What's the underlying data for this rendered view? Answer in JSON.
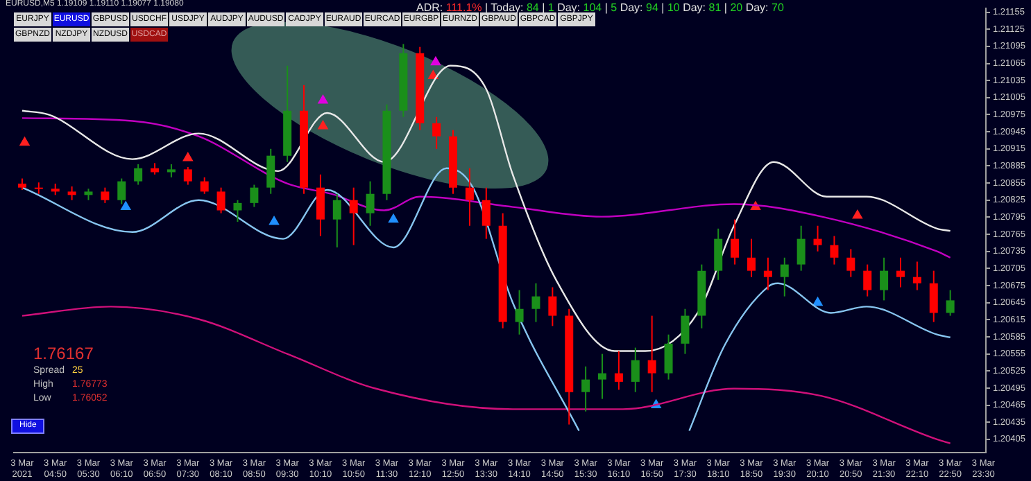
{
  "chart_data": {
    "type": "candlestick",
    "title": "EURUSD,M5  1.19109 1.19110 1.19077 1.19080",
    "annotations": [
      "ADR: 111.1%  |  Today: 84  |  1 Day: 104  |  5 Day: 94  |  10 Day: 81  |  20 Day: 70",
      "EURJPY",
      "EURUSD",
      "GBPUSD",
      "USDCHF",
      "USDJPY",
      "AUDJPY",
      "AUDUSD",
      "CADJPY",
      "EURAUD",
      "EURCAD",
      "EURGBP",
      "EURNZD",
      "GBPAUD",
      "GBPCAD",
      "GBPJPY",
      "GBPNZD",
      "NZDJPY",
      "NZDUSD",
      "USDCAD",
      "Hide",
      "1.76167",
      "Spread",
      "25",
      "High",
      "1.76773",
      "Low",
      "1.76052"
    ],
    "x": [
      "2021-03-03T04:10",
      "2021-03-03T04:30",
      "2021-03-03T04:50",
      "2021-03-03T05:10",
      "2021-03-03T05:30",
      "2021-03-03T05:50",
      "2021-03-03T06:10",
      "2021-03-03T06:30",
      "2021-03-03T06:50",
      "2021-03-03T07:10",
      "2021-03-03T07:30",
      "2021-03-03T07:50",
      "2021-03-03T08:10",
      "2021-03-03T08:30",
      "2021-03-03T08:50",
      "2021-03-03T09:10",
      "2021-03-03T09:30",
      "2021-03-03T09:50",
      "2021-03-03T10:10",
      "2021-03-03T10:30",
      "2021-03-03T10:50",
      "2021-03-03T11:10",
      "2021-03-03T11:30",
      "2021-03-03T11:50",
      "2021-03-03T12:10",
      "2021-03-03T12:30",
      "2021-03-03T12:50",
      "2021-03-03T13:10",
      "2021-03-03T13:30",
      "2021-03-03T13:50",
      "2021-03-03T14:10",
      "2021-03-03T14:30",
      "2021-03-03T14:50",
      "2021-03-03T15:10",
      "2021-03-03T15:30",
      "2021-03-03T15:50",
      "2021-03-03T16:10",
      "2021-03-03T16:30",
      "2021-03-03T16:50",
      "2021-03-03T17:10",
      "2021-03-03T17:30",
      "2021-03-03T17:50",
      "2021-03-03T18:10",
      "2021-03-03T18:30",
      "2021-03-03T18:50",
      "2021-03-03T19:10",
      "2021-03-03T19:30",
      "2021-03-03T19:50",
      "2021-03-03T20:10",
      "2021-03-03T20:30",
      "2021-03-03T20:50",
      "2021-03-03T21:10",
      "2021-03-03T21:30",
      "2021-03-03T21:50",
      "2021-03-03T22:10",
      "2021-03-03T22:30",
      "2021-03-03T22:50"
    ],
    "ohlc": [
      [
        1.20854,
        1.20863,
        1.20843,
        1.20847
      ],
      [
        1.20847,
        1.20856,
        1.20836,
        1.20845
      ],
      [
        1.20845,
        1.20854,
        1.20834,
        1.2084
      ],
      [
        1.2084,
        1.20849,
        1.20825,
        1.20834
      ],
      [
        1.20834,
        1.20845,
        1.20825,
        1.2084
      ],
      [
        1.2084,
        1.20847,
        1.2082,
        1.20825
      ],
      [
        1.20825,
        1.20863,
        1.20818,
        1.20858
      ],
      [
        1.20858,
        1.20888,
        1.20852,
        1.20881
      ],
      [
        1.20881,
        1.2089,
        1.2087,
        1.20874
      ],
      [
        1.20874,
        1.20888,
        1.20865,
        1.20879
      ],
      [
        1.20879,
        1.20883,
        1.20852,
        1.20858
      ],
      [
        1.20858,
        1.20865,
        1.20836,
        1.2084
      ],
      [
        1.2084,
        1.20847,
        1.20802,
        1.20807
      ],
      [
        1.20807,
        1.20825,
        1.20787,
        1.2082
      ],
      [
        1.2082,
        1.20852,
        1.20813,
        1.20847
      ],
      [
        1.20847,
        1.20915,
        1.20836,
        1.20903
      ],
      [
        1.20903,
        1.21061,
        1.20892,
        1.20982
      ],
      [
        1.20982,
        1.21027,
        1.20836,
        1.20847
      ],
      [
        1.20847,
        1.2087,
        1.20762,
        1.20791
      ],
      [
        1.20791,
        1.20836,
        1.20742,
        1.20825
      ],
      [
        1.20825,
        1.20847,
        1.20746,
        1.20802
      ],
      [
        1.20802,
        1.20858,
        1.2078,
        1.20836
      ],
      [
        1.20836,
        1.20993,
        1.20825,
        1.20982
      ],
      [
        1.20982,
        1.21099,
        1.20971,
        1.21083
      ],
      [
        1.21083,
        1.21094,
        1.20948,
        1.2096
      ],
      [
        1.2096,
        1.20971,
        1.20915,
        1.20937
      ],
      [
        1.20937,
        1.20948,
        1.20836,
        1.20847
      ],
      [
        1.20847,
        1.20881,
        1.2078,
        1.20825
      ],
      [
        1.20825,
        1.20847,
        1.20757,
        1.2078
      ],
      [
        1.2078,
        1.20802,
        1.206,
        1.20611
      ],
      [
        1.20611,
        1.20667,
        1.20589,
        1.20634
      ],
      [
        1.20634,
        1.20679,
        1.20611,
        1.20656
      ],
      [
        1.20656,
        1.20672,
        1.20604,
        1.20622
      ],
      [
        1.20622,
        1.20634,
        1.20431,
        1.20488
      ],
      [
        1.20488,
        1.20533,
        1.20454,
        1.2051
      ],
      [
        1.2051,
        1.20555,
        1.20476,
        1.20521
      ],
      [
        1.20521,
        1.2056,
        1.20492,
        1.20506
      ],
      [
        1.20506,
        1.20566,
        1.20488,
        1.20544
      ],
      [
        1.20544,
        1.20622,
        1.20488,
        1.20521
      ],
      [
        1.20521,
        1.20589,
        1.2051,
        1.20573
      ],
      [
        1.20573,
        1.20634,
        1.20555,
        1.20622
      ],
      [
        1.20622,
        1.20712,
        1.206,
        1.20701
      ],
      [
        1.20701,
        1.20775,
        1.20685,
        1.20757
      ],
      [
        1.20757,
        1.20791,
        1.20712,
        1.20724
      ],
      [
        1.20724,
        1.20757,
        1.2069,
        1.20701
      ],
      [
        1.20701,
        1.20724,
        1.20667,
        1.2069
      ],
      [
        1.2069,
        1.20724,
        1.20656,
        1.20712
      ],
      [
        1.20712,
        1.2078,
        1.20701,
        1.20757
      ],
      [
        1.20757,
        1.2078,
        1.20735,
        1.20746
      ],
      [
        1.20746,
        1.20762,
        1.20712,
        1.20724
      ],
      [
        1.20724,
        1.20739,
        1.2069,
        1.20701
      ],
      [
        1.20701,
        1.20712,
        1.20656,
        1.20667
      ],
      [
        1.20667,
        1.20724,
        1.20649,
        1.20701
      ],
      [
        1.20701,
        1.20724,
        1.20672,
        1.2069
      ],
      [
        1.2069,
        1.20717,
        1.20667,
        1.20679
      ],
      [
        1.20679,
        1.20701,
        1.20611,
        1.20627
      ],
      [
        1.20627,
        1.20667,
        1.20622,
        1.20649
      ]
    ],
    "colors": [
      "#ff0000",
      "#ff0000",
      "#ff0000",
      "#ff0000",
      "#1a8f1a",
      "#ff0000",
      "#1a8f1a",
      "#1a8f1a",
      "#ff0000",
      "#1a8f1a",
      "#ff0000",
      "#ff0000",
      "#ff0000",
      "#1a8f1a",
      "#1a8f1a",
      "#1a8f1a",
      "#1a8f1a",
      "#ff0000",
      "#ff0000",
      "#1a8f1a",
      "#ff0000",
      "#1a8f1a",
      "#1a8f1a",
      "#1a8f1a",
      "#ff0000",
      "#ff0000",
      "#ff0000",
      "#ff0000",
      "#ff0000",
      "#ff0000",
      "#1a8f1a",
      "#1a8f1a",
      "#ff0000",
      "#ff0000",
      "#1a8f1a",
      "#1a8f1a",
      "#ff0000",
      "#1a8f1a",
      "#ff0000",
      "#1a8f1a",
      "#1a8f1a",
      "#1a8f1a",
      "#1a8f1a",
      "#ff0000",
      "#ff0000",
      "#ff0000",
      "#1a8f1a",
      "#1a8f1a",
      "#ff0000",
      "#ff0000",
      "#ff0000",
      "#ff0000",
      "#1a8f1a",
      "#ff0000",
      "#ff0000",
      "#ff0000",
      "#1a8f1a"
    ],
    "series": [
      {
        "type": "line",
        "color": "#e8e8e8",
        "x": [
          "2021-03-03T04:10",
          "2021-03-03T04:42",
          "2021-03-03T06:23",
          "2021-03-03T07:43",
          "2021-03-03T09:19",
          "2021-03-03T10:18",
          "2021-03-03T11:27",
          "2021-03-03T12:47",
          "2021-03-03T13:30",
          "2021-03-03T14:02",
          "2021-03-03T14:55",
          "2021-03-03T16:05",
          "2021-03-03T16:42",
          "2021-03-03T17:46",
          "2021-03-03T18:29",
          "2021-03-03T19:17",
          "2021-03-03T20:21",
          "2021-03-03T21:09",
          "2021-03-03T22:34",
          "2021-03-03T22:50"
        ],
        "values": [
          1.20982,
          1.20975,
          1.20897,
          1.20942,
          1.20876,
          1.20978,
          1.20892,
          1.21061,
          1.2102,
          1.2087,
          1.20683,
          1.2056,
          1.2056,
          1.20629,
          1.2078,
          1.20892,
          1.20831,
          1.20831,
          1.20775,
          1.20771
        ]
      },
      {
        "type": "line",
        "color": "#87c5f0",
        "x": [
          "2021-03-03T04:10",
          "2021-03-03T06:23",
          "2021-03-03T07:43",
          "2021-03-03T09:25",
          "2021-03-03T10:18",
          "2021-03-03T11:38",
          "2021-03-03T12:42",
          "2021-03-03T13:14",
          "2021-03-03T14:02",
          "2021-03-03T15:22",
          "2021-03-03T16:30",
          "2021-03-03T17:35",
          "2021-03-03T18:18",
          "2021-03-03T19:11",
          "2021-03-03T19:22",
          "2021-03-03T20:26",
          "2021-03-03T21:09",
          "2021-03-03T22:34",
          "2021-03-03T22:50"
        ],
        "values": [
          1.20847,
          1.20769,
          1.20825,
          1.20757,
          1.20843,
          1.20742,
          1.20881,
          1.20847,
          1.20645,
          1.2042,
          null,
          1.2042,
          1.20571,
          1.20674,
          1.20679,
          1.20627,
          1.20638,
          1.20589,
          1.20584
        ]
      },
      {
        "type": "line",
        "color": "#c000c0",
        "x": [
          "2021-03-03T04:10",
          "2021-03-03T06:23",
          "2021-03-03T07:43",
          "2021-03-03T09:30",
          "2021-03-03T10:23",
          "2021-03-03T11:27",
          "2021-03-03T12:10",
          "2021-03-03T14:02",
          "2021-03-03T15:49",
          "2021-03-03T18:29",
          "2021-03-03T20:15",
          "2021-03-03T22:34",
          "2021-03-03T22:50"
        ],
        "values": [
          1.20969,
          1.20964,
          1.20937,
          1.20854,
          1.20836,
          1.20807,
          1.20831,
          1.20813,
          1.20796,
          1.20818,
          1.20796,
          1.20735,
          1.20724
        ]
      },
      {
        "type": "line",
        "color": "#d0107a",
        "x": [
          "2021-03-03T04:10",
          "2021-03-03T05:57",
          "2021-03-03T07:43",
          "2021-03-03T09:30",
          "2021-03-03T11:17",
          "2021-03-03T14:02",
          "2021-03-03T16:15",
          "2021-03-03T18:29",
          "2021-03-03T20:15",
          "2021-03-03T22:34",
          "2021-03-03T22:50"
        ],
        "values": [
          1.20622,
          1.20638,
          1.20616,
          1.20555,
          1.20494,
          1.20458,
          1.20458,
          1.20494,
          1.20481,
          1.20405,
          1.20398
        ]
      },
      {
        "type": "scatter",
        "marker": "triangle",
        "color": "#ff2020",
        "x": [
          "2021-03-03T04:13",
          "2021-03-03T07:30",
          "2021-03-03T10:13",
          "2021-03-03T12:26",
          "2021-03-03T18:55",
          "2021-03-03T20:58"
        ],
        "values": [
          1.20926,
          1.20899,
          1.20955,
          1.21043,
          1.20813,
          1.20798
        ]
      },
      {
        "type": "scatter",
        "marker": "triangle",
        "color": "#2090ff",
        "x": [
          "2021-03-03T06:15",
          "2021-03-03T09:14",
          "2021-03-03T11:38",
          "2021-03-03T16:55",
          "2021-03-03T20:10"
        ],
        "values": [
          1.20813,
          1.20787,
          1.20791,
          1.20465,
          1.20645
        ]
      },
      {
        "type": "scatter",
        "marker": "triangle",
        "color": "#e000e0",
        "x": [
          "2021-03-03T10:13",
          "2021-03-03T12:29"
        ],
        "values": [
          1.21,
          1.21067
        ]
      }
    ],
    "xlim": [
      "2021-03-03T04:00",
      "2021-03-03T23:33"
    ],
    "ylim": [
      1.20382,
      1.21162
    ],
    "xticks": [
      {
        "value": "2021-03-03T04:10",
        "label": "3 Mar 2021"
      },
      {
        "value": "2021-03-03T04:50",
        "label": "3 Mar 04:50"
      },
      {
        "value": "2021-03-03T05:30",
        "label": "3 Mar 05:30"
      },
      {
        "value": "2021-03-03T06:10",
        "label": "3 Mar 06:10"
      },
      {
        "value": "2021-03-03T06:50",
        "label": "3 Mar 06:50"
      },
      {
        "value": "2021-03-03T07:30",
        "label": "3 Mar 07:30"
      },
      {
        "value": "2021-03-03T08:10",
        "label": "3 Mar 08:10"
      },
      {
        "value": "2021-03-03T08:50",
        "label": "3 Mar 08:50"
      },
      {
        "value": "2021-03-03T09:30",
        "label": "3 Mar 09:30"
      },
      {
        "value": "2021-03-03T10:10",
        "label": "3 Mar 10:10"
      },
      {
        "value": "2021-03-03T10:50",
        "label": "3 Mar 10:50"
      },
      {
        "value": "2021-03-03T11:30",
        "label": "3 Mar 11:30"
      },
      {
        "value": "2021-03-03T12:10",
        "label": "3 Mar 12:10"
      },
      {
        "value": "2021-03-03T12:50",
        "label": "3 Mar 12:50"
      },
      {
        "value": "2021-03-03T13:30",
        "label": "3 Mar 13:30"
      },
      {
        "value": "2021-03-03T14:10",
        "label": "3 Mar 14:10"
      },
      {
        "value": "2021-03-03T14:50",
        "label": "3 Mar 14:50"
      },
      {
        "value": "2021-03-03T15:30",
        "label": "3 Mar 15:30"
      },
      {
        "value": "2021-03-03T16:10",
        "label": "3 Mar 16:10"
      },
      {
        "value": "2021-03-03T16:50",
        "label": "3 Mar 16:50"
      },
      {
        "value": "2021-03-03T17:30",
        "label": "3 Mar 17:30"
      },
      {
        "value": "2021-03-03T18:10",
        "label": "3 Mar 18:10"
      },
      {
        "value": "2021-03-03T18:50",
        "label": "3 Mar 18:50"
      },
      {
        "value": "2021-03-03T19:30",
        "label": "3 Mar 19:30"
      },
      {
        "value": "2021-03-03T20:10",
        "label": "3 Mar 20:10"
      },
      {
        "value": "2021-03-03T20:50",
        "label": "3 Mar 20:50"
      },
      {
        "value": "2021-03-03T21:30",
        "label": "3 Mar 21:30"
      },
      {
        "value": "2021-03-03T22:10",
        "label": "3 Mar 22:10"
      },
      {
        "value": "2021-03-03T22:50",
        "label": "3 Mar 22:50"
      },
      {
        "value": "2021-03-03T23:30",
        "label": "3 Mar 23:30"
      }
    ],
    "yticks": [
      1.20405,
      1.20435,
      1.20465,
      1.20495,
      1.20525,
      1.20555,
      1.20585,
      1.20615,
      1.20645,
      1.20675,
      1.20705,
      1.20735,
      1.20765,
      1.20795,
      1.20825,
      1.20855,
      1.20885,
      1.20915,
      1.20945,
      1.20975,
      1.21005,
      1.21035,
      1.21065,
      1.21095,
      1.21125,
      1.21155
    ]
  }
}
